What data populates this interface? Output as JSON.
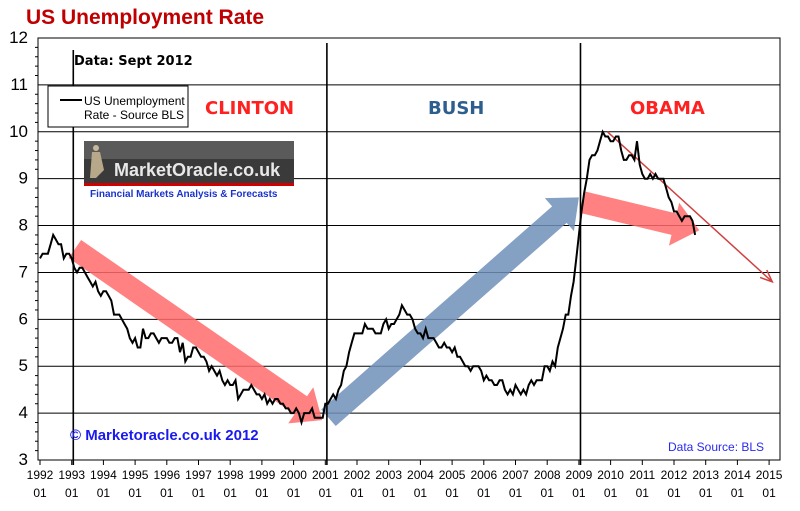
{
  "chart_data": {
    "type": "line",
    "title": "US Unemployment Rate",
    "subtitle": "Data: Sept 2012",
    "legend": {
      "entries": [
        "US Unemployment",
        "Rate - Source BLS"
      ],
      "placement": "top-left"
    },
    "ylim": [
      3,
      12
    ],
    "yticks": [
      "3",
      "4",
      "5",
      "6",
      "7",
      "8",
      "9",
      "10",
      "11",
      "12"
    ],
    "xlim": [
      1992,
      2015
    ],
    "xticks": [
      {
        "year": "1992",
        "month": "01"
      },
      {
        "year": "1993",
        "month": "01"
      },
      {
        "year": "1994",
        "month": "01"
      },
      {
        "year": "1995",
        "month": "01"
      },
      {
        "year": "1996",
        "month": "01"
      },
      {
        "year": "1997",
        "month": "01"
      },
      {
        "year": "1998",
        "month": "01"
      },
      {
        "year": "1999",
        "month": "01"
      },
      {
        "year": "2000",
        "month": "01"
      },
      {
        "year": "2001",
        "month": "01"
      },
      {
        "year": "2002",
        "month": "01"
      },
      {
        "year": "2003",
        "month": "01"
      },
      {
        "year": "2004",
        "month": "01"
      },
      {
        "year": "2005",
        "month": "01"
      },
      {
        "year": "2006",
        "month": "01"
      },
      {
        "year": "2007",
        "month": "01"
      },
      {
        "year": "2008",
        "month": "01"
      },
      {
        "year": "2009",
        "month": "01"
      },
      {
        "year": "2010",
        "month": "01"
      },
      {
        "year": "2011",
        "month": "01"
      },
      {
        "year": "2012",
        "month": "01"
      },
      {
        "year": "2013",
        "month": "01"
      },
      {
        "year": "2014",
        "month": "01"
      },
      {
        "year": "2015",
        "month": "01"
      }
    ],
    "grid": "horizontal",
    "series": [
      {
        "name": "US Unemployment Rate - Source BLS",
        "color": "#000000",
        "start": "1992-01",
        "monthly_values": [
          7.3,
          7.4,
          7.4,
          7.4,
          7.6,
          7.8,
          7.7,
          7.6,
          7.6,
          7.3,
          7.4,
          7.4,
          7.3,
          7.1,
          7.0,
          7.1,
          7.1,
          7.0,
          6.9,
          6.8,
          6.7,
          6.8,
          6.6,
          6.5,
          6.6,
          6.6,
          6.5,
          6.4,
          6.1,
          6.1,
          6.1,
          6.0,
          5.9,
          5.8,
          5.6,
          5.5,
          5.6,
          5.4,
          5.4,
          5.8,
          5.6,
          5.6,
          5.7,
          5.7,
          5.6,
          5.5,
          5.6,
          5.6,
          5.6,
          5.5,
          5.5,
          5.6,
          5.6,
          5.3,
          5.5,
          5.1,
          5.2,
          5.2,
          5.4,
          5.4,
          5.3,
          5.2,
          5.2,
          5.1,
          4.9,
          5.0,
          4.9,
          4.8,
          4.9,
          4.7,
          4.6,
          4.7,
          4.6,
          4.6,
          4.7,
          4.3,
          4.4,
          4.5,
          4.5,
          4.5,
          4.6,
          4.5,
          4.4,
          4.4,
          4.3,
          4.4,
          4.2,
          4.3,
          4.2,
          4.3,
          4.3,
          4.2,
          4.2,
          4.1,
          4.1,
          4.0,
          4.0,
          4.1,
          4.0,
          3.8,
          4.0,
          4.0,
          4.0,
          4.1,
          3.9,
          3.9,
          3.9,
          3.9,
          4.2,
          4.2,
          4.3,
          4.4,
          4.3,
          4.5,
          4.6,
          4.9,
          5.0,
          5.3,
          5.5,
          5.7,
          5.7,
          5.7,
          5.7,
          5.9,
          5.8,
          5.8,
          5.8,
          5.7,
          5.7,
          5.7,
          5.9,
          6.0,
          5.8,
          5.9,
          5.9,
          6.0,
          6.1,
          6.3,
          6.2,
          6.1,
          6.1,
          6.0,
          5.8,
          5.7,
          5.7,
          5.6,
          5.8,
          5.6,
          5.6,
          5.6,
          5.5,
          5.4,
          5.4,
          5.5,
          5.4,
          5.4,
          5.3,
          5.4,
          5.2,
          5.2,
          5.1,
          5.0,
          5.0,
          4.9,
          5.0,
          5.0,
          5.0,
          4.9,
          4.7,
          4.8,
          4.7,
          4.7,
          4.6,
          4.6,
          4.7,
          4.7,
          4.5,
          4.4,
          4.5,
          4.4,
          4.6,
          4.5,
          4.4,
          4.5,
          4.4,
          4.6,
          4.7,
          4.6,
          4.7,
          4.7,
          4.7,
          5.0,
          5.0,
          4.9,
          5.1,
          5.0,
          5.4,
          5.6,
          5.8,
          6.1,
          6.1,
          6.5,
          6.8,
          7.3,
          7.8,
          8.3,
          8.7,
          9.0,
          9.4,
          9.5,
          9.5,
          9.6,
          9.8,
          10.0,
          9.9,
          9.9,
          9.8,
          9.8,
          9.9,
          9.9,
          9.6,
          9.4,
          9.4,
          9.5,
          9.5,
          9.4,
          9.8,
          9.3,
          9.1,
          9.0,
          9.0,
          9.1,
          9.0,
          9.1,
          9.0,
          9.0,
          9.0,
          8.8,
          8.6,
          8.5,
          8.3,
          8.3,
          8.2,
          8.1,
          8.2,
          8.2,
          8.2,
          8.1,
          7.8
        ]
      }
    ],
    "presidency_dividers": [
      1993.05,
      2001.05,
      2009.05
    ],
    "eras": [
      {
        "label": "CLINTON",
        "color": "#ff2020"
      },
      {
        "label": "BUSH",
        "color": "#2e5e8e"
      },
      {
        "label": "OBAMA",
        "color": "#ff2020"
      }
    ],
    "trend_arrows": [
      {
        "from": [
          1993.1,
          7.5
        ],
        "to": [
          2000.9,
          3.85
        ],
        "color": "#ff6b6b",
        "kind": "wide"
      },
      {
        "from": [
          2001.1,
          3.9
        ],
        "to": [
          2009.0,
          8.6
        ],
        "color": "#6f8fb8",
        "kind": "wide"
      },
      {
        "from": [
          2009.1,
          8.5
        ],
        "to": [
          2012.8,
          7.9
        ],
        "color": "#ff6b6b",
        "kind": "wide"
      },
      {
        "from": [
          2009.9,
          10.0
        ],
        "to": [
          2015.1,
          6.8
        ],
        "color": "#d04040",
        "kind": "thin"
      }
    ],
    "annotations": {
      "copyright": "© Marketoracle.co.uk 2012",
      "source": "Data Source: BLS",
      "logo_text": "MarketOracle.co.uk",
      "logo_tagline": "Financial Markets Analysis & Forecasts"
    }
  }
}
